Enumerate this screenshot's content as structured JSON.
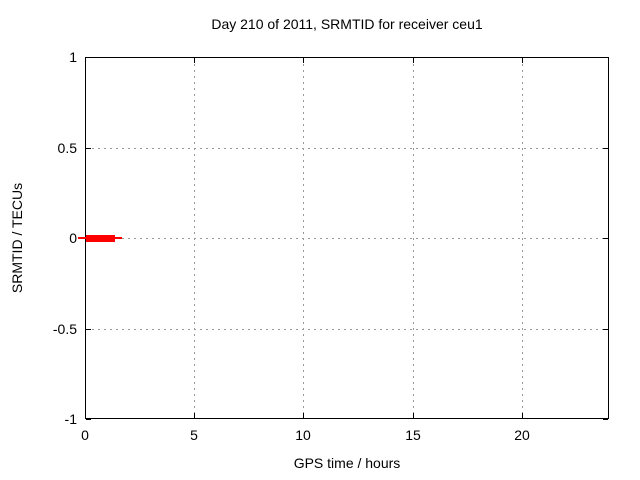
{
  "chart_data": {
    "type": "line",
    "title": "Day 210 of 2011, SRMTID for receiver ceu1",
    "xlabel": "GPS time / hours",
    "ylabel": "SRMTID / TECUs",
    "xlim": [
      0,
      24
    ],
    "ylim": [
      -1,
      1
    ],
    "xticks": {
      "values": [
        0,
        5,
        10,
        15,
        20
      ],
      "labels": [
        "0",
        "5",
        "10",
        "15",
        "20"
      ]
    },
    "yticks": {
      "values": [
        1,
        0.5,
        0,
        -0.5,
        -1
      ],
      "labels": [
        "1",
        "0.5",
        "0",
        "-0.5",
        "-1"
      ]
    },
    "grid": "dashed, at every major tick",
    "legend": "none",
    "series": [
      {
        "name": "SRMTID",
        "color": "#ff0000",
        "style": "thick horizontal segment near y=0",
        "x": [
          0.0,
          1.4
        ],
        "y": [
          0.0,
          0.0
        ]
      }
    ],
    "draw_segments": [
      {
        "x1": -0.32,
        "x2": 1.7,
        "y": 0,
        "px_thickness": 2,
        "role": "thin-line"
      },
      {
        "x1": 0.05,
        "x2": 1.37,
        "y": 0,
        "px_thickness": 7,
        "role": "thick-line"
      }
    ]
  },
  "colors": {
    "background": "#ffffff",
    "axis": "#000000",
    "grid": "#999999",
    "text": "#000000",
    "series": "#ff0000"
  }
}
